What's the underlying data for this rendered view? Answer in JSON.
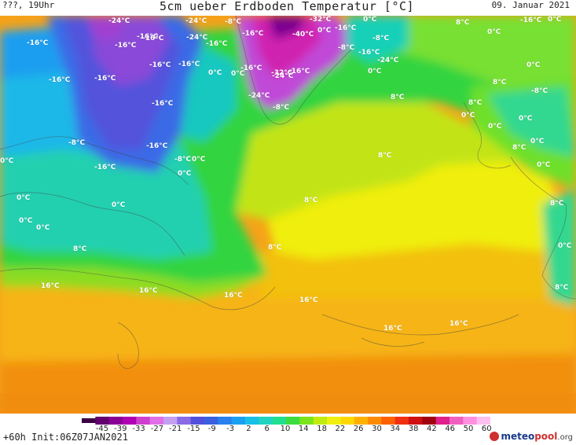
{
  "header": {
    "left_text": "???, 19Uhr",
    "title": "5cm ueber Erdboden Temperatur [°C]",
    "date": "09. Januar 2021"
  },
  "footer": {
    "init_text": "+60h Init:06Z07JAN2021",
    "logo_text": {
      "brand_a": "meteo",
      "brand_b": "pool",
      "suffix": ".org"
    },
    "colorbar_ticks": [
      "-45",
      "-39",
      "-33",
      "-27",
      "-21",
      "-15",
      "-9",
      "-3",
      "2",
      "6",
      "10",
      "14",
      "18",
      "22",
      "26",
      "30",
      "34",
      "38",
      "42",
      "46",
      "50",
      "60"
    ],
    "colorbar_colors": [
      "#3a0043",
      "#62006d",
      "#8a0096",
      "#b000b4",
      "#d040d0",
      "#e070e8",
      "#c4a0f0",
      "#8a6ae6",
      "#5050dc",
      "#3a60e0",
      "#2a80f0",
      "#1aa0f0",
      "#18c0e8",
      "#20d4c0",
      "#20e090",
      "#3cdc40",
      "#7ae41a",
      "#c0ec10",
      "#f0f010",
      "#ffd800",
      "#ffb000",
      "#ff8c00",
      "#ff6000",
      "#f03010",
      "#d01010",
      "#a00010",
      "#e0208c",
      "#f060c0",
      "#ff90e0",
      "#ffc0f0"
    ]
  },
  "map": {
    "labels": [
      {
        "text": "-24°C"
      },
      {
        "text": "-16°C"
      },
      {
        "text": "-24°C"
      },
      {
        "text": "-8°C"
      },
      {
        "text": "-32°C"
      },
      {
        "text": "0°C"
      },
      {
        "text": "-16°C"
      },
      {
        "text": "0°C"
      },
      {
        "text": "-16°C"
      },
      {
        "text": "-16°C"
      },
      {
        "text": "-24°C"
      },
      {
        "text": "-16°C"
      },
      {
        "text": "-16°C"
      },
      {
        "text": "-16°C"
      },
      {
        "text": "-40°C"
      },
      {
        "text": "-16°C"
      },
      {
        "text": "-8°C"
      },
      {
        "text": "8°C"
      },
      {
        "text": "0°C"
      },
      {
        "text": "0°C"
      },
      {
        "text": "-16°C"
      },
      {
        "text": "-8°C"
      },
      {
        "text": "-16°C"
      },
      {
        "text": "-24°C"
      },
      {
        "text": "-16°C"
      },
      {
        "text": "-32°C"
      },
      {
        "text": "-16°C"
      },
      {
        "text": "-16°C"
      },
      {
        "text": "-24°C"
      },
      {
        "text": "0°C"
      },
      {
        "text": "0°C"
      },
      {
        "text": "0°C"
      },
      {
        "text": "-16°C"
      },
      {
        "text": "8°C"
      },
      {
        "text": "0°C"
      },
      {
        "text": "-16°C"
      },
      {
        "text": "-24°C"
      },
      {
        "text": "-8°C"
      },
      {
        "text": "8°C"
      },
      {
        "text": "0°C"
      },
      {
        "text": "-8°C"
      },
      {
        "text": "-16°C"
      },
      {
        "text": "-16°C"
      },
      {
        "text": "8°C"
      },
      {
        "text": "0°C"
      },
      {
        "text": "0°C"
      },
      {
        "text": "-8°C"
      },
      {
        "text": "-16°C"
      },
      {
        "text": "8°C"
      },
      {
        "text": "0°C"
      },
      {
        "text": "0°C"
      },
      {
        "text": "-8°C"
      },
      {
        "text": "0°C"
      },
      {
        "text": "8°C"
      },
      {
        "text": "0°C"
      },
      {
        "text": "0°C"
      },
      {
        "text": "0°C"
      },
      {
        "text": "0°C"
      },
      {
        "text": "8°C"
      },
      {
        "text": "0°C"
      },
      {
        "text": "0°C"
      },
      {
        "text": "8°C"
      },
      {
        "text": "0°C"
      },
      {
        "text": "8°C"
      },
      {
        "text": "8°C"
      },
      {
        "text": "16°C"
      },
      {
        "text": "16°C"
      },
      {
        "text": "16°C"
      },
      {
        "text": "16°C"
      },
      {
        "text": "16°C"
      },
      {
        "text": "16°C"
      },
      {
        "text": "8°C"
      }
    ]
  }
}
